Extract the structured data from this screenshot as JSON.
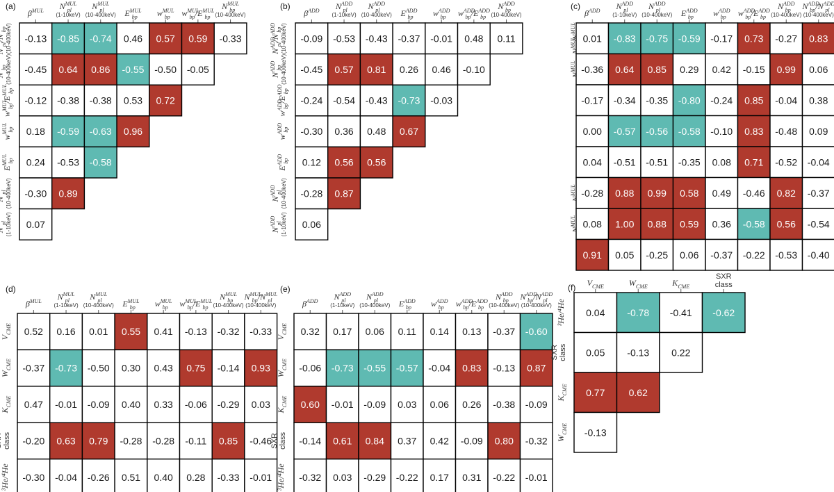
{
  "colors": {
    "positive": "#b03a2e",
    "negative": "#5fbab2",
    "cell_bg": "#ffffff",
    "border": "#000000"
  },
  "threshold": 0.55,
  "chart_data": [
    {
      "type": "heatmap",
      "label": "(a)",
      "columns": [
        "β^MUL",
        "N_pl^MUL|(1-10keV)",
        "N_pl^MUL|(10-400keV)",
        "E_bp^MUL",
        "w_bp^MUL",
        "w_bp^MUL/E_bp^MUL",
        "N_bp^MUL|(10-400keV)"
      ],
      "rows": [
        "N_pl^MUL/N_bp^MUL|(10-400keV)",
        "N_bp^MUL|(10-400keV)",
        "w_bp^MUL/E_bp^MUL",
        "w_bp^MUL",
        "E_bp^MUL",
        "N_pl^MUL|(10-400keV)",
        "N_pl^MUL|(1-10keV)"
      ],
      "values": [
        [
          -0.13,
          -0.85,
          -0.74,
          0.46,
          0.57,
          0.59,
          -0.33
        ],
        [
          -0.45,
          0.64,
          0.86,
          -0.55,
          -0.5,
          -0.05
        ],
        [
          -0.12,
          -0.38,
          -0.38,
          0.53,
          0.72
        ],
        [
          0.18,
          -0.59,
          -0.63,
          0.96
        ],
        [
          0.24,
          -0.53,
          -0.58
        ],
        [
          -0.3,
          0.89
        ],
        [
          0.07
        ]
      ]
    },
    {
      "type": "heatmap",
      "label": "(b)",
      "columns": [
        "β^ADD",
        "N_pl^ADD|(1-10keV)",
        "N_pl^ADD|(10-400keV)",
        "E_bp^ADD",
        "w_bp^ADD",
        "w_bp^ADD/E_bp^ADD",
        "N_bp^ADD|(10-400keV)"
      ],
      "rows": [
        "N_pl^ADD/N_bp^ADD|(10-400keV)",
        "N_bp^ADD|(10-400keV)",
        "w_bp^ADD/E_bp^ADD",
        "w_bp^ADD",
        "E_bp^ADD",
        "N_pl^ADD|(10-400keV)",
        "N_pl^ADD|(1-10keV)"
      ],
      "values": [
        [
          -0.09,
          -0.53,
          -0.43,
          -0.37,
          -0.01,
          0.48,
          0.11
        ],
        [
          -0.45,
          0.57,
          0.81,
          0.26,
          0.46,
          -0.1
        ],
        [
          -0.24,
          -0.54,
          -0.43,
          -0.73,
          -0.03
        ],
        [
          -0.3,
          0.36,
          0.48,
          0.67
        ],
        [
          0.12,
          0.56,
          0.56
        ],
        [
          -0.28,
          0.87
        ],
        [
          0.06
        ]
      ]
    },
    {
      "type": "heatmap",
      "label": "(c)",
      "columns": [
        "β^ADD",
        "N_pl^ADD|(1-10keV)",
        "N_pl^ADD|(10-400keV)",
        "E_bp^ADD",
        "w_bp^ADD",
        "w_bp^ADD/E_bp^ADD",
        "N_bp^ADD|(10-400keV)",
        "N_bp^ADD/N_pl^ADD|(10-400keV)"
      ],
      "rows": [
        "N_pl^MUL/N_bp^MUL|(10-400keV)",
        "N_bp^MUL|(10-400keV)",
        "w_bp^MUL/E_bp^MUL",
        "w_bp^MUL",
        "E_bp^MUL",
        "N_pl^MUL|(10-400keV)",
        "N_pl^MUL|(1-10keV)",
        "β^MUL"
      ],
      "values": [
        [
          0.01,
          -0.83,
          -0.75,
          -0.59,
          -0.17,
          0.73,
          -0.27,
          0.83
        ],
        [
          -0.36,
          0.64,
          0.85,
          0.29,
          0.42,
          -0.15,
          0.99,
          0.06
        ],
        [
          -0.17,
          -0.34,
          -0.35,
          -0.8,
          -0.24,
          0.85,
          -0.04,
          0.38
        ],
        [
          0.0,
          -0.57,
          -0.56,
          -0.58,
          -0.1,
          0.83,
          -0.48,
          0.09
        ],
        [
          0.04,
          -0.51,
          -0.51,
          -0.35,
          0.08,
          0.71,
          -0.52,
          -0.04
        ],
        [
          -0.28,
          0.88,
          0.99,
          0.58,
          0.49,
          -0.46,
          0.82,
          -0.37
        ],
        [
          0.08,
          1.0,
          0.88,
          0.59,
          0.36,
          -0.58,
          0.56,
          -0.54
        ],
        [
          0.91,
          0.05,
          -0.25,
          0.06,
          -0.37,
          -0.22,
          -0.53,
          -0.4
        ]
      ]
    },
    {
      "type": "heatmap",
      "label": "(d)",
      "columns": [
        "β^MUL",
        "N_pl^MUL|(1-10keV)",
        "N_pl^MUL|(10-400keV)",
        "E_bp^MUL",
        "w_bp^MUL",
        "w_bp^MUL/E_bp^MUL",
        "N_bp^MUL|(10-400keV)",
        "N_bp^MUL/N_pl^MUL|(10-400keV)"
      ],
      "rows": [
        "V_CME",
        "W_CME",
        "K_CME",
        "SXR|class",
        "³He/⁴He"
      ],
      "values": [
        [
          0.52,
          0.16,
          0.01,
          0.55,
          0.41,
          -0.13,
          -0.32,
          -0.33
        ],
        [
          -0.37,
          -0.73,
          -0.5,
          0.3,
          0.43,
          0.75,
          -0.14,
          0.93
        ],
        [
          0.47,
          -0.01,
          -0.09,
          0.4,
          0.33,
          -0.06,
          -0.29,
          0.03
        ],
        [
          -0.2,
          0.63,
          0.79,
          -0.28,
          -0.28,
          -0.11,
          0.85,
          -0.46
        ],
        [
          -0.3,
          -0.04,
          -0.26,
          0.51,
          0.4,
          0.28,
          -0.33,
          -0.01
        ]
      ]
    },
    {
      "type": "heatmap",
      "label": "(e)",
      "columns": [
        "β^ADD",
        "N_pl^ADD|(1-10keV)",
        "N_pl^ADD|(10-400keV)",
        "E_bp^ADD",
        "w_bp^ADD",
        "w_bp^ADD/E_bp^ADD",
        "N_bp^ADD|(10-400keV)",
        "N_bp^ADD/N_pl^ADD|(10-400keV)"
      ],
      "rows": [
        "V_CME",
        "W_CME",
        "K_CME",
        "SXR|class",
        "³He/⁴He"
      ],
      "values": [
        [
          0.32,
          0.17,
          0.06,
          0.11,
          0.14,
          0.13,
          -0.37,
          -0.6
        ],
        [
          -0.06,
          -0.73,
          -0.55,
          -0.57,
          -0.04,
          0.83,
          -0.13,
          0.87
        ],
        [
          0.6,
          -0.01,
          -0.09,
          0.03,
          0.06,
          0.26,
          -0.38,
          -0.09
        ],
        [
          -0.14,
          0.61,
          0.84,
          0.37,
          0.42,
          -0.09,
          0.8,
          -0.32
        ],
        [
          -0.32,
          0.03,
          -0.29,
          -0.22,
          0.17,
          0.31,
          -0.22,
          -0.01
        ]
      ]
    },
    {
      "type": "heatmap",
      "label": "(f)",
      "columns": [
        "V_CME",
        "W_CME",
        "K_CME",
        "SXR|class"
      ],
      "rows": [
        "³He/⁴He",
        "SXR|class",
        "K_CME",
        "W_CME"
      ],
      "values": [
        [
          0.04,
          -0.78,
          -0.41,
          -0.62
        ],
        [
          0.05,
          -0.13,
          0.22
        ],
        [
          0.77,
          0.62
        ],
        [
          -0.13
        ]
      ]
    }
  ]
}
